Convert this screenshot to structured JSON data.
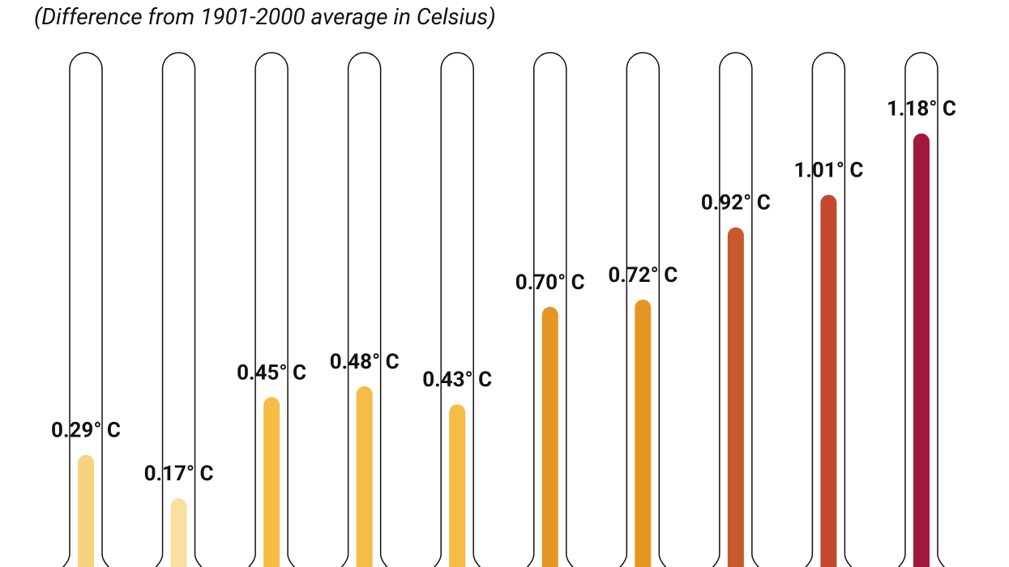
{
  "chart_data": {
    "type": "thermometer",
    "subtitle": "(Difference from 1901-2000 average in Celsius)",
    "values": [
      0.29,
      0.17,
      0.45,
      0.48,
      0.43,
      0.7,
      0.72,
      0.92,
      1.01,
      1.18
    ],
    "value_labels": [
      "0.29° C",
      "0.17° C",
      "0.45° C",
      "0.48° C",
      "0.43° C",
      "0.70° C",
      "0.72° C",
      "0.92° C",
      "1.01° C",
      "1.18° C"
    ],
    "colors": [
      "#f7d27f",
      "#f9dfa0",
      "#f5bd45",
      "#f5bd45",
      "#f5bd45",
      "#e59622",
      "#e59622",
      "#c8592a",
      "#c0492e",
      "#a3183a"
    ]
  }
}
